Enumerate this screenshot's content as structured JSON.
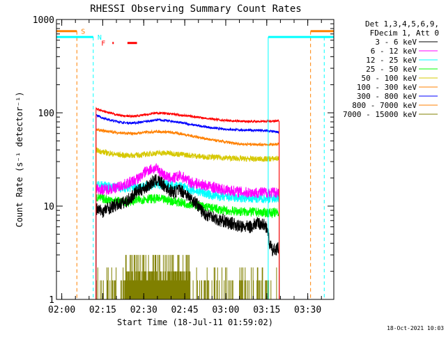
{
  "chart_data": {
    "type": "line",
    "title": "RHESSI Observing Summary Count Rates",
    "xlabel": "Start Time (18-Jul-11 01:59:02)",
    "ylabel": "Count Rate (s⁻¹ detector⁻¹)",
    "yscale": "log",
    "xlim": [
      -0.97,
      100.5
    ],
    "ylim": [
      1,
      1000
    ],
    "x_unit": "minutes after 01:59:02",
    "x_ticks": [
      {
        "value": 0.97,
        "label": "02:00"
      },
      {
        "value": 15.97,
        "label": "02:15"
      },
      {
        "value": 30.97,
        "label": "02:30"
      },
      {
        "value": 45.97,
        "label": "02:45"
      },
      {
        "value": 60.97,
        "label": "03:00"
      },
      {
        "value": 75.97,
        "label": "03:15"
      },
      {
        "value": 90.97,
        "label": "03:30"
      }
    ],
    "y_ticks": [
      {
        "value": 1,
        "label": "1"
      },
      {
        "value": 10,
        "label": "10"
      },
      {
        "value": 100,
        "label": "100"
      },
      {
        "value": 1000,
        "label": "1000"
      }
    ],
    "legend": {
      "position": "top-right",
      "header": [
        "Det 1,3,4,5,6,9,",
        "FDecim 1, Att 0"
      ]
    },
    "data_window": [
      13.5,
      80.5
    ],
    "series": [
      {
        "name": "3 - 6 keV",
        "color": "#000000",
        "noise": 0.07,
        "points": [
          [
            13.5,
            9.5
          ],
          [
            14,
            9.2
          ],
          [
            15,
            9.0
          ],
          [
            16,
            8.8
          ],
          [
            18,
            9.5
          ],
          [
            20,
            10
          ],
          [
            24,
            11
          ],
          [
            26,
            12
          ],
          [
            28,
            14
          ],
          [
            30,
            15
          ],
          [
            32,
            16
          ],
          [
            34,
            18
          ],
          [
            36,
            19
          ],
          [
            38,
            17
          ],
          [
            40,
            15
          ],
          [
            42,
            14
          ],
          [
            44,
            15
          ],
          [
            46,
            14
          ],
          [
            48,
            12
          ],
          [
            50,
            11
          ],
          [
            52,
            9
          ],
          [
            54,
            8
          ],
          [
            56,
            8
          ],
          [
            58,
            7
          ],
          [
            60,
            7
          ],
          [
            62,
            6.5
          ],
          [
            64,
            6.5
          ],
          [
            66,
            6
          ],
          [
            68,
            6
          ],
          [
            70,
            6
          ],
          [
            72,
            6.5
          ],
          [
            74,
            6.5
          ],
          [
            76,
            6
          ],
          [
            77,
            4
          ],
          [
            78,
            3.3
          ],
          [
            79.5,
            3.5
          ],
          [
            80.5,
            3.5
          ]
        ]
      },
      {
        "name": "6 - 12 keV",
        "color": "#ff00ff",
        "noise": 0.06,
        "points": [
          [
            13.5,
            15.5
          ],
          [
            16,
            15
          ],
          [
            20,
            15.5
          ],
          [
            24,
            17
          ],
          [
            28,
            19
          ],
          [
            30,
            21
          ],
          [
            32,
            24
          ],
          [
            34,
            25
          ],
          [
            36,
            25
          ],
          [
            38,
            22
          ],
          [
            40,
            20
          ],
          [
            42,
            20
          ],
          [
            44,
            21
          ],
          [
            46,
            20
          ],
          [
            48,
            18
          ],
          [
            52,
            17
          ],
          [
            56,
            16
          ],
          [
            60,
            15
          ],
          [
            64,
            14.5
          ],
          [
            68,
            14
          ],
          [
            72,
            14
          ],
          [
            76,
            14
          ],
          [
            80.5,
            14
          ]
        ]
      },
      {
        "name": "12 - 25 keV",
        "color": "#00ffff",
        "noise": 0.05,
        "points": [
          [
            13.5,
            17
          ],
          [
            16,
            16.5
          ],
          [
            20,
            16
          ],
          [
            24,
            15.5
          ],
          [
            28,
            16
          ],
          [
            32,
            16.5
          ],
          [
            36,
            17
          ],
          [
            40,
            17
          ],
          [
            44,
            16.5
          ],
          [
            48,
            15
          ],
          [
            52,
            14
          ],
          [
            56,
            13
          ],
          [
            60,
            12.5
          ],
          [
            64,
            12.3
          ],
          [
            68,
            12
          ],
          [
            72,
            12
          ],
          [
            76,
            12
          ],
          [
            80.5,
            12.2
          ]
        ]
      },
      {
        "name": "25 - 50 keV",
        "color": "#00ff00",
        "noise": 0.05,
        "points": [
          [
            13.5,
            12.5
          ],
          [
            16,
            12
          ],
          [
            20,
            11.5
          ],
          [
            24,
            11
          ],
          [
            28,
            11.5
          ],
          [
            32,
            12
          ],
          [
            36,
            12
          ],
          [
            40,
            11.5
          ],
          [
            44,
            11
          ],
          [
            48,
            10.5
          ],
          [
            52,
            10
          ],
          [
            56,
            9.5
          ],
          [
            60,
            9
          ],
          [
            64,
            8.8
          ],
          [
            68,
            8.7
          ],
          [
            72,
            8.6
          ],
          [
            76,
            8.5
          ],
          [
            80.5,
            8.5
          ]
        ]
      },
      {
        "name": "50 - 100 keV",
        "color": "#d6c800",
        "noise": 0.03,
        "points": [
          [
            13.5,
            40
          ],
          [
            16,
            38
          ],
          [
            20,
            36
          ],
          [
            24,
            35
          ],
          [
            28,
            35
          ],
          [
            32,
            36
          ],
          [
            36,
            37
          ],
          [
            40,
            37
          ],
          [
            44,
            36
          ],
          [
            48,
            35
          ],
          [
            52,
            34
          ],
          [
            56,
            33.5
          ],
          [
            60,
            33
          ],
          [
            64,
            32.5
          ],
          [
            68,
            32
          ],
          [
            72,
            32
          ],
          [
            76,
            32
          ],
          [
            80.5,
            32.5
          ]
        ]
      },
      {
        "name": "100 - 300 keV",
        "color": "#ff8000",
        "noise": 0.015,
        "points": [
          [
            13.5,
            66
          ],
          [
            16,
            64
          ],
          [
            20,
            62
          ],
          [
            24,
            60
          ],
          [
            28,
            60
          ],
          [
            32,
            62
          ],
          [
            36,
            63
          ],
          [
            40,
            62
          ],
          [
            44,
            60
          ],
          [
            48,
            57
          ],
          [
            52,
            54
          ],
          [
            56,
            51
          ],
          [
            60,
            49
          ],
          [
            64,
            47
          ],
          [
            68,
            46
          ],
          [
            72,
            46
          ],
          [
            76,
            45.5
          ],
          [
            80.5,
            46
          ]
        ]
      },
      {
        "name": "300 - 800 keV",
        "color": "#0000ff",
        "noise": 0.012,
        "points": [
          [
            13.5,
            95
          ],
          [
            16,
            88
          ],
          [
            20,
            82
          ],
          [
            24,
            78
          ],
          [
            28,
            78
          ],
          [
            32,
            81
          ],
          [
            36,
            84
          ],
          [
            40,
            82
          ],
          [
            44,
            79
          ],
          [
            48,
            75
          ],
          [
            52,
            72
          ],
          [
            56,
            69
          ],
          [
            60,
            67
          ],
          [
            64,
            66
          ],
          [
            68,
            65
          ],
          [
            72,
            65
          ],
          [
            76,
            64
          ],
          [
            80.5,
            62
          ]
        ]
      },
      {
        "name": "800 - 7000 keV",
        "color": "#ff8000",
        "noise": 0.0,
        "points": []
      },
      {
        "name": "7000 - 15000 keV",
        "color": "#808000",
        "noise": 0.0,
        "points": []
      }
    ],
    "red_trace": {
      "color": "#ff0000",
      "noise": 0.012,
      "points": [
        [
          13.5,
          110
        ],
        [
          16,
          104
        ],
        [
          20,
          97
        ],
        [
          24,
          92
        ],
        [
          28,
          92
        ],
        [
          32,
          96
        ],
        [
          36,
          100
        ],
        [
          40,
          98
        ],
        [
          44,
          95
        ],
        [
          48,
          92
        ],
        [
          52,
          89
        ],
        [
          56,
          86
        ],
        [
          60,
          83
        ],
        [
          64,
          82
        ],
        [
          68,
          81
        ],
        [
          72,
          81
        ],
        [
          76,
          81
        ],
        [
          80.5,
          82
        ]
      ]
    },
    "spiky_trace": {
      "color": "#808000",
      "x_range": [
        13.5,
        80.5
      ],
      "dense_range": [
        24,
        48
      ]
    },
    "flags": [
      {
        "label": "S",
        "color": "#ff8000",
        "level": 750,
        "segments": [
          [
            -0.97,
            6.5
          ],
          [
            92,
            100.5
          ]
        ],
        "lines": [
          6.5,
          92
        ]
      },
      {
        "label": "N",
        "color": "#00ffff",
        "level": 650,
        "segments": [
          [
            -0.97,
            12.5
          ],
          [
            76.5,
            100.5
          ]
        ],
        "lines": [
          12.5,
          76.5,
          97
        ],
        "solid_lines": [
          76.5
        ]
      },
      {
        "label": "F",
        "color": "#ff0000",
        "level": 560,
        "segments": [
          [
            19.5,
            20
          ],
          [
            25,
            28.5
          ]
        ]
      }
    ]
  },
  "footer": {
    "timestamp": "18-Oct-2021 10:03"
  }
}
